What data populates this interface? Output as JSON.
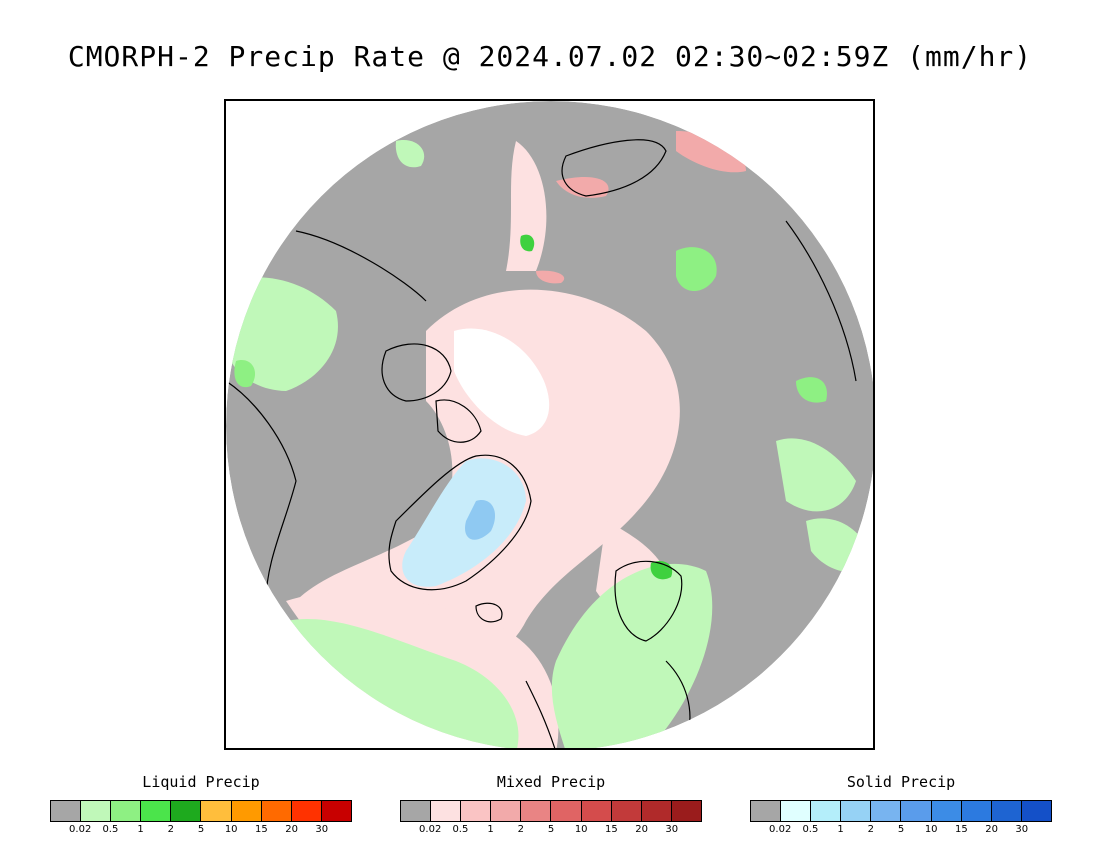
{
  "title": "CMORPH-2 Precip Rate @ 2024.07.02 02:30~02:59Z (mm/hr)",
  "map": {
    "colors": {
      "background": "#a6a6a6",
      "land_outline": "#000000",
      "mixed_light": "#fde1e1",
      "liquid_light": "#c0f8b9",
      "liquid_mid": "#8ef083",
      "liquid_dark": "#3fd13f",
      "mixed_mid": "#f2aaaa",
      "solid_light": "#c8ecfa",
      "solid_mid": "#8fc9f2",
      "ice_white": "#ffffff"
    }
  },
  "legends": [
    {
      "title": "Liquid Precip",
      "colors": [
        "#a6a6a6",
        "#c0f8b9",
        "#8ef083",
        "#4be44b",
        "#1eaa1e",
        "#ffbe3c",
        "#ff9a00",
        "#ff6a00",
        "#ff3200",
        "#c80000"
      ],
      "ticks": [
        "0.02",
        "0.5",
        "1",
        "2",
        "5",
        "10",
        "15",
        "20",
        "30"
      ]
    },
    {
      "title": "Mixed Precip",
      "colors": [
        "#a6a6a6",
        "#fde1e1",
        "#fac4c4",
        "#f2aaaa",
        "#e98484",
        "#e06464",
        "#d44c4c",
        "#c23a3a",
        "#b02a2a",
        "#9a1c1c"
      ],
      "ticks": [
        "0.02",
        "0.5",
        "1",
        "2",
        "5",
        "10",
        "15",
        "20",
        "30"
      ]
    },
    {
      "title": "Solid Precip",
      "colors": [
        "#a6a6a6",
        "#e0ffff",
        "#b4eefa",
        "#96d2f5",
        "#78b4f0",
        "#5a9ceb",
        "#3c8ce6",
        "#2c7ae0",
        "#1e64d2",
        "#1450c8"
      ],
      "ticks": [
        "0.02",
        "0.5",
        "1",
        "2",
        "5",
        "10",
        "15",
        "20",
        "30"
      ]
    }
  ]
}
